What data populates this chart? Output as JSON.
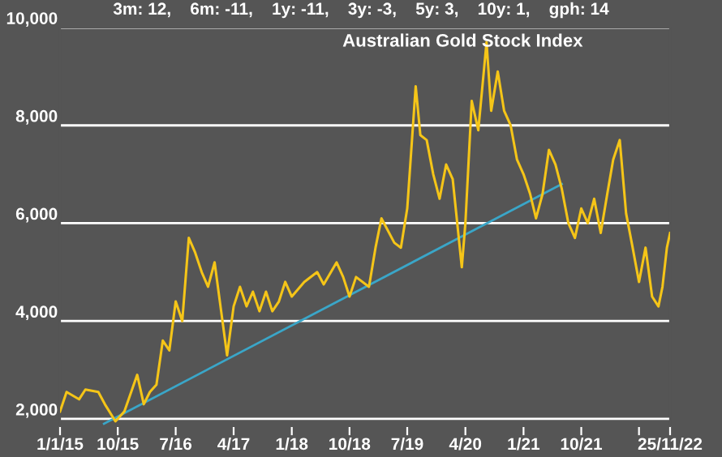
{
  "chart_data": {
    "type": "line",
    "title": "Australian Gold Stock Index",
    "subtitle": "3m: 12,    6m: -11,    1y: -11,    3y: -3,    5y: 3,    10y: 1,    gph: 14",
    "x": [
      "2015-01-01",
      "2015-02-01",
      "2015-04-01",
      "2015-05-01",
      "2015-07-01",
      "2015-08-01",
      "2015-09-20",
      "2015-11-01",
      "2016-01-01",
      "2016-02-01",
      "2016-03-01",
      "2016-04-01",
      "2016-05-01",
      "2016-06-01",
      "2016-07-01",
      "2016-08-01",
      "2016-09-01",
      "2016-10-01",
      "2016-11-01",
      "2016-12-01",
      "2017-01-01",
      "2017-02-01",
      "2017-03-01",
      "2017-04-01",
      "2017-05-01",
      "2017-06-01",
      "2017-07-01",
      "2017-08-01",
      "2017-09-01",
      "2017-10-01",
      "2017-11-01",
      "2017-12-01",
      "2018-01-01",
      "2018-03-01",
      "2018-05-01",
      "2018-06-01",
      "2018-08-01",
      "2018-09-01",
      "2018-10-01",
      "2018-11-01",
      "2019-01-01",
      "2019-02-01",
      "2019-03-01",
      "2019-05-01",
      "2019-06-01",
      "2019-07-01",
      "2019-08-10",
      "2019-09-01",
      "2019-10-01",
      "2019-11-01",
      "2019-12-01",
      "2020-01-01",
      "2020-02-01",
      "2020-03-15",
      "2020-04-01",
      "2020-05-01",
      "2020-06-01",
      "2020-07-10",
      "2020-08-01",
      "2020-09-01",
      "2020-10-01",
      "2020-11-01",
      "2020-12-01",
      "2021-01-01",
      "2021-02-01",
      "2021-03-01",
      "2021-04-01",
      "2021-05-01",
      "2021-06-01",
      "2021-07-01",
      "2021-08-01",
      "2021-09-01",
      "2021-10-01",
      "2021-11-01",
      "2021-12-01",
      "2022-01-01",
      "2022-02-01",
      "2022-03-01",
      "2022-04-01",
      "2022-05-01",
      "2022-06-01",
      "2022-07-01",
      "2022-08-01",
      "2022-09-01",
      "2022-10-01",
      "2022-10-20",
      "2022-11-10",
      "2022-11-25"
    ],
    "series": [
      {
        "color": "#f5c518",
        "values": [
          2150,
          2550,
          2400,
          2600,
          2550,
          2300,
          1950,
          2150,
          2900,
          2300,
          2550,
          2700,
          3600,
          3400,
          4400,
          4000,
          5700,
          5400,
          5000,
          4700,
          5200,
          4200,
          3300,
          4300,
          4700,
          4300,
          4600,
          4200,
          4600,
          4200,
          4400,
          4800,
          4500,
          4800,
          5000,
          4750,
          5200,
          4900,
          4500,
          4900,
          4700,
          5500,
          6100,
          5600,
          5500,
          6300,
          8800,
          7800,
          7700,
          7000,
          6500,
          7200,
          6900,
          5100,
          6000,
          8500,
          7900,
          9700,
          8300,
          9100,
          8300,
          8000,
          7300,
          7000,
          6600,
          6100,
          6600,
          7500,
          7200,
          6700,
          6000,
          5700,
          6300,
          6000,
          6500,
          5800,
          6600,
          7300,
          7700,
          6200,
          5500,
          4800,
          5500,
          4500,
          4300,
          4700,
          5500,
          5800
        ]
      },
      {
        "color": "#3aa6c8",
        "x": [
          "2015-07-28",
          "2021-07-01"
        ],
        "values": [
          1900,
          6800
        ]
      }
    ],
    "xlim": [
      "2015-01-01",
      "2022-11-25"
    ],
    "xticks": [
      {
        "value": "2015-01-01",
        "label": "1/1/15"
      },
      {
        "value": "2015-10-01",
        "label": "10/15"
      },
      {
        "value": "2016-07-01",
        "label": "7/16"
      },
      {
        "value": "2017-04-01",
        "label": "4/17"
      },
      {
        "value": "2018-01-01",
        "label": "1/18"
      },
      {
        "value": "2018-10-01",
        "label": "10/18"
      },
      {
        "value": "2019-07-01",
        "label": "7/19"
      },
      {
        "value": "2020-04-01",
        "label": "4/20"
      },
      {
        "value": "2021-01-01",
        "label": "1/21"
      },
      {
        "value": "2021-10-01",
        "label": "10/21"
      },
      {
        "value": "2022-07-01",
        "label": null
      },
      {
        "value": "2022-11-25",
        "label": "25/11/22"
      }
    ],
    "ylim": [
      1850,
      10000
    ],
    "yticks": [
      {
        "value": 2000,
        "label": "2,000"
      },
      {
        "value": 4000,
        "label": "4,000"
      },
      {
        "value": 6000,
        "label": "6,000"
      },
      {
        "value": 8000,
        "label": "8,000"
      },
      {
        "value": 10000,
        "label": "10,000"
      }
    ],
    "grid": "y",
    "legend": false,
    "marker": "none",
    "line_style": "solid"
  }
}
